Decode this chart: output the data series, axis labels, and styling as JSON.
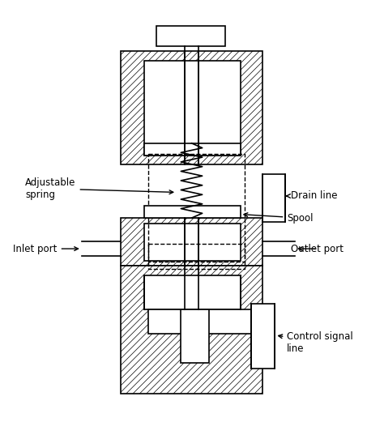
{
  "background_color": "#ffffff",
  "line_color": "#000000",
  "hatch_pattern": "////",
  "labels": {
    "adjustable_spring": "Adjustable\nspring",
    "drain_line": "Drain line",
    "spool": "Spool",
    "inlet_port": "Inlet port",
    "outlet_port": "Outlet port",
    "control_signal_line": "Control signal\nline"
  },
  "figsize": [
    4.74,
    5.21
  ],
  "dpi": 100
}
